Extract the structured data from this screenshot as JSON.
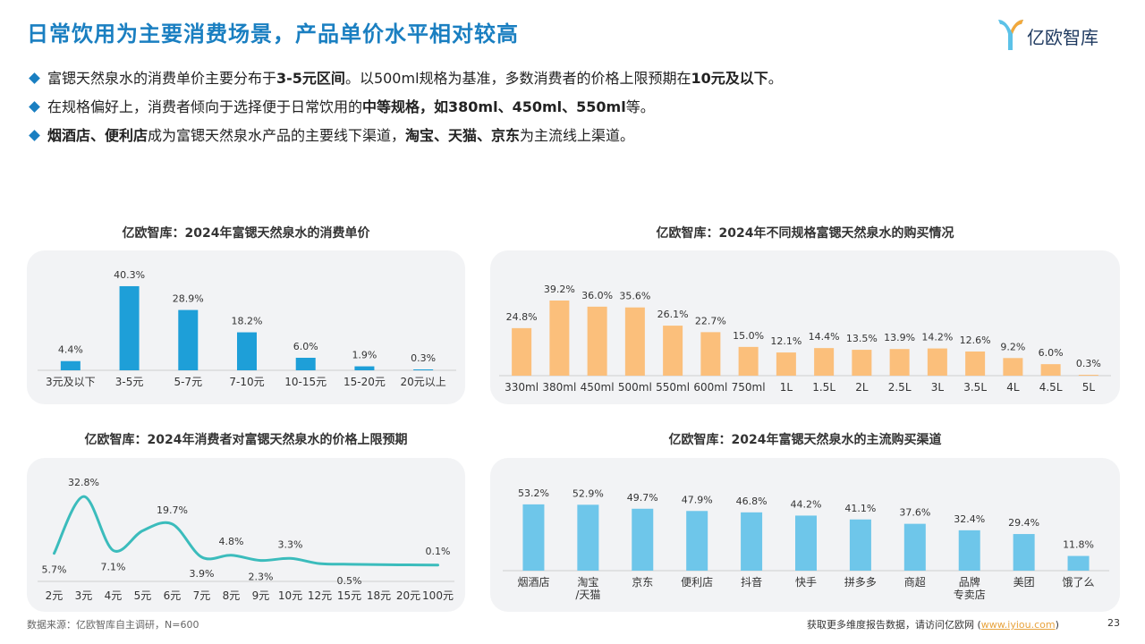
{
  "title": "日常饮用为主要消费场景，产品单价水平相对较高",
  "logo": {
    "text": "亿欧智库",
    "icon": "iyiou-logo-icon",
    "color": "#1f3a60",
    "accent": "#5cc2e8"
  },
  "bullets": [
    [
      {
        "t": "富锶天然泉水的消费单价主要分布于",
        "b": false
      },
      {
        "t": "3-5元区间",
        "b": true
      },
      {
        "t": "。以500ml规格为基准，多数消费者的价格上限预期在",
        "b": false
      },
      {
        "t": "10元及以下",
        "b": true
      },
      {
        "t": "。",
        "b": false
      }
    ],
    [
      {
        "t": "在规格偏好上，消费者倾向于选择便于日常饮用的",
        "b": false
      },
      {
        "t": "中等规格，如380ml、450ml、550ml",
        "b": true
      },
      {
        "t": "等。",
        "b": false
      }
    ],
    [
      {
        "t": "烟酒店、便利店",
        "b": true
      },
      {
        "t": "成为富锶天然泉水产品的主要线下渠道，",
        "b": false
      },
      {
        "t": "淘宝、天猫、京东",
        "b": true
      },
      {
        "t": "为主流线上渠道。",
        "b": false
      }
    ]
  ],
  "chart_data": [
    {
      "type": "bar",
      "title": "亿欧智库：2024年富锶天然泉水的消费单价",
      "categories": [
        "3元及以下",
        "3-5元",
        "5-7元",
        "7-10元",
        "10-15元",
        "15-20元",
        "20元以上"
      ],
      "values": [
        4.4,
        40.3,
        28.9,
        18.2,
        6.0,
        1.9,
        0.3
      ],
      "labels": [
        "4.4%",
        "40.3%",
        "28.9%",
        "18.2%",
        "6.0%",
        "1.9%",
        "0.3%"
      ],
      "color": "#1e9fd8",
      "ylim": [
        0,
        42
      ]
    },
    {
      "type": "bar",
      "title": "亿欧智库：2024年不同规格富锶天然泉水的购买情况",
      "categories": [
        "330ml",
        "380ml",
        "450ml",
        "500ml",
        "550ml",
        "600ml",
        "750ml",
        "1L",
        "1.5L",
        "2L",
        "2.5L",
        "3L",
        "3.5L",
        "4L",
        "4.5L",
        "5L"
      ],
      "values": [
        24.8,
        39.2,
        36.0,
        35.6,
        26.1,
        22.7,
        15.0,
        12.1,
        14.4,
        13.5,
        13.9,
        14.2,
        12.6,
        9.2,
        6.0,
        0.3
      ],
      "labels": [
        "24.8%",
        "39.2%",
        "36.0%",
        "35.6%",
        "26.1%",
        "22.7%",
        "15.0%",
        "12.1%",
        "14.4%",
        "13.5%",
        "13.9%",
        "14.2%",
        "12.6%",
        "9.2%",
        "6.0%",
        "0.3%"
      ],
      "color": "#fbbf7b",
      "ylim": [
        0,
        42
      ]
    },
    {
      "type": "line",
      "title": "亿欧智库：2024年消费者对富锶天然泉水的价格上限预期",
      "categories": [
        "2元",
        "3元",
        "4元",
        "5元",
        "6元",
        "7元",
        "8元",
        "9元",
        "10元",
        "12元",
        "15元",
        "18元",
        "20元",
        "100元"
      ],
      "values": [
        5.7,
        32.8,
        7.1,
        16.5,
        19.7,
        3.9,
        4.8,
        2.3,
        3.3,
        0.8,
        0.5,
        0.3,
        0.2,
        0.1
      ],
      "point_labels": [
        {
          "i": 0,
          "text": "5.7%",
          "pos": "below"
        },
        {
          "i": 1,
          "text": "32.8%",
          "pos": "above"
        },
        {
          "i": 2,
          "text": "7.1%",
          "pos": "below"
        },
        {
          "i": 4,
          "text": "19.7%",
          "pos": "above"
        },
        {
          "i": 5,
          "text": "3.9%",
          "pos": "below"
        },
        {
          "i": 6,
          "text": "4.8%",
          "pos": "above"
        },
        {
          "i": 7,
          "text": "2.3%",
          "pos": "below"
        },
        {
          "i": 8,
          "text": "3.3%",
          "pos": "above"
        },
        {
          "i": 10,
          "text": "0.5%",
          "pos": "below"
        },
        {
          "i": 13,
          "text": "0.1%",
          "pos": "above"
        }
      ],
      "color": "#3bbcbc",
      "ylim": [
        0,
        35
      ]
    },
    {
      "type": "bar",
      "title": "亿欧智库：2024年富锶天然泉水的主流购买渠道",
      "categories": [
        "烟酒店",
        "淘宝\n/天猫",
        "京东",
        "便利店",
        "抖音",
        "快手",
        "拼多多",
        "商超",
        "品牌\n专卖店",
        "美团",
        "饿了么"
      ],
      "values": [
        53.2,
        52.9,
        49.7,
        47.9,
        46.8,
        44.2,
        41.1,
        37.6,
        32.4,
        29.4,
        11.8
      ],
      "labels": [
        "53.2%",
        "52.9%",
        "49.7%",
        "47.9%",
        "46.8%",
        "44.2%",
        "41.1%",
        "37.6%",
        "32.4%",
        "29.4%",
        "11.8%"
      ],
      "color": "#6ec6ea",
      "ylim": [
        0,
        56
      ]
    }
  ],
  "footer": {
    "source": "数据来源：亿欧智库自主调研，N=600",
    "more_prefix": "获取更多维度报告数据，请访问亿欧网 (",
    "more_link": "www.iyiou.com",
    "more_suffix": ")",
    "page": "23"
  }
}
